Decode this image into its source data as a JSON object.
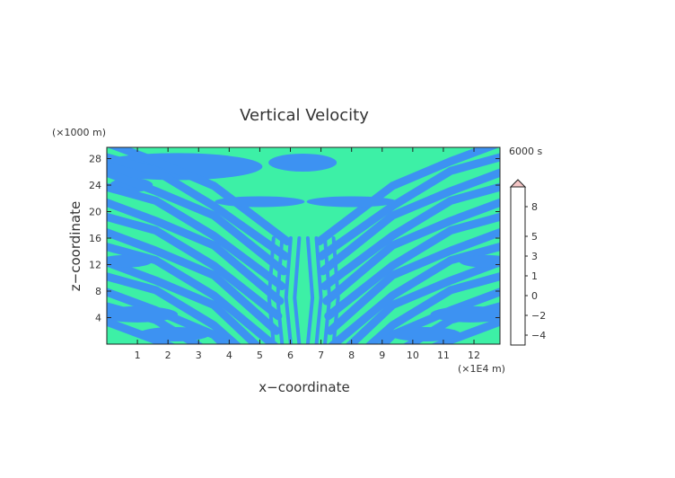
{
  "chart_data": {
    "type": "heatmap",
    "title": "Vertical Velocity",
    "time_label": "6000 s",
    "xlabel": "x−coordinate",
    "ylabel": "z−coordinate",
    "x_unit": "(×1E4 m)",
    "y_unit": "(×1000 m)",
    "xlim": [
      0,
      12.85
    ],
    "ylim": [
      0,
      29.7
    ],
    "x_ticks": [
      1,
      2,
      3,
      4,
      5,
      6,
      7,
      8,
      9,
      10,
      11,
      12
    ],
    "y_ticks": [
      4,
      8,
      12,
      16,
      20,
      24,
      28
    ],
    "colorbar": {
      "tick_labels": [
        "8",
        "5",
        "3",
        "1",
        "0",
        "−2",
        "−4"
      ],
      "tick_values": [
        8,
        5,
        3,
        1,
        0,
        -2,
        -4
      ],
      "levels": [
        -5,
        -4,
        -3,
        -2,
        -1,
        0,
        0.5,
        1,
        2,
        3,
        4,
        5,
        6,
        7,
        8,
        9,
        10
      ],
      "colors": [
        "#7a1fd6",
        "#3b19b5",
        "#1c22c8",
        "#1d4fe0",
        "#3a86f0",
        "#2da6e8",
        "#23d0a8",
        "#a6e03c",
        "#e8e810",
        "#f4b400",
        "#f27c1a",
        "#f44a14",
        "#ee1b1b",
        "#f33a3a",
        "#f26262",
        "#f49a9a"
      ],
      "extend_max": true
    },
    "field_colors": {
      "positive": "#3df0a6",
      "negative": "#3d92f2"
    }
  }
}
